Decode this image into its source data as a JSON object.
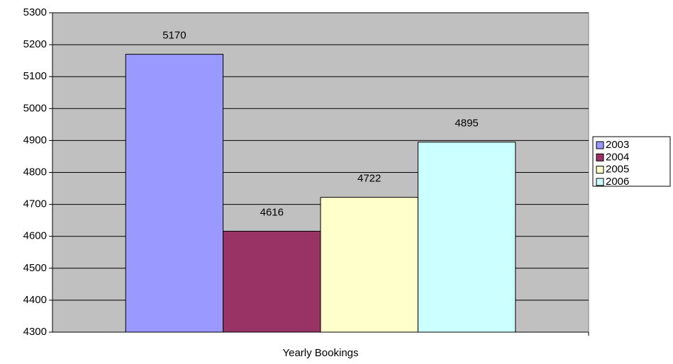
{
  "chart_data": {
    "type": "bar",
    "categories": [
      "Yearly Bookings"
    ],
    "series": [
      {
        "name": "2003",
        "color": "#9999ff",
        "values": [
          5170
        ]
      },
      {
        "name": "2004",
        "color": "#993366",
        "values": [
          4616
        ]
      },
      {
        "name": "2005",
        "color": "#ffffcc",
        "values": [
          4722
        ]
      },
      {
        "name": "2006",
        "color": "#ccffff",
        "values": [
          4895
        ]
      }
    ],
    "ylim": [
      4300,
      5300
    ],
    "yticks": [
      4300,
      4400,
      4500,
      4600,
      4700,
      4800,
      4900,
      5000,
      5100,
      5200,
      5300
    ],
    "grid": true,
    "legend": "right",
    "plot_background": "#c0c0c0"
  }
}
